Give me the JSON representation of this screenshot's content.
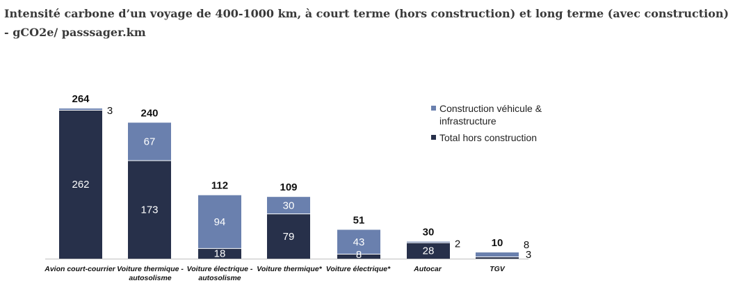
{
  "title": "Intensité carbone d’un voyage de 400-1000 km, à court terme (hors construction) et long terme (avec construction) - gCO2e/ passsager.km",
  "chart_data": {
    "type": "bar",
    "stacked": true,
    "categories": [
      "Avion court-courrier",
      "Voiture thermique - autosolisme",
      "Voiture électrique - autosolisme",
      "Voiture thermique*",
      "Voiture électrique*",
      "Autocar",
      "TGV"
    ],
    "series": [
      {
        "name": "Total hors construction",
        "color": "#27304a",
        "values": [
          262,
          173,
          18,
          79,
          8,
          28,
          3
        ]
      },
      {
        "name": "Construction véhicule & infrastructure",
        "color": "#6a80ae",
        "values": [
          3,
          67,
          94,
          30,
          43,
          2,
          8
        ]
      }
    ],
    "totals": [
      264,
      240,
      112,
      109,
      51,
      30,
      10
    ],
    "ylim": [
      0,
      270
    ],
    "legend_position": "right",
    "grid": false
  }
}
